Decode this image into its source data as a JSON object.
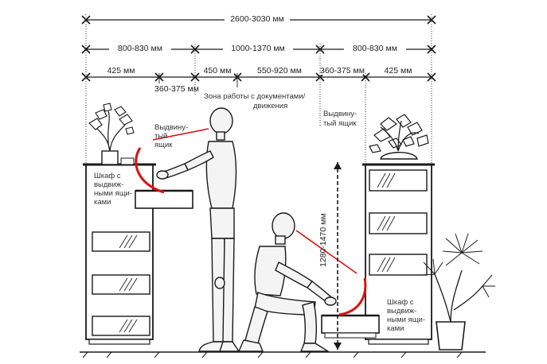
{
  "dimensions": {
    "total": "2600-3030 мм",
    "left_unit": "800-830 мм",
    "middle_zone": "1000-1370 мм",
    "right_unit": "800-830 мм",
    "left_cabinet": "425 мм",
    "left_drawer_pull": "360-375 мм",
    "standing_stance": "450 мм",
    "work_reach": "550-920 мм",
    "right_drawer_pull": "360-375 мм",
    "right_cabinet": "425 мм",
    "vertical_reach": "1280-1470 мм"
  },
  "labels": {
    "work_zone_line1": "Зона работы с документами/",
    "work_zone_line2": "движения",
    "drawer_left_line1": "Выдвину-",
    "drawer_left_line2": "тый",
    "drawer_left_line3": "ящик",
    "drawer_right_line1": "Выдвину-",
    "drawer_right_line2": "тый ящик",
    "cabinet_left_line1": "Шкаф с",
    "cabinet_left_line2": "выдвиж-",
    "cabinet_left_line3": "ными ящи-",
    "cabinet_left_line4": "ками",
    "cabinet_right_line1": "Шкаф с",
    "cabinet_right_line2": "выдвиж-",
    "cabinet_right_line3": "ными ящи-",
    "cabinet_right_line4": "ками"
  },
  "colors": {
    "line": "#1a1a1a",
    "accent": "#dd1111"
  }
}
